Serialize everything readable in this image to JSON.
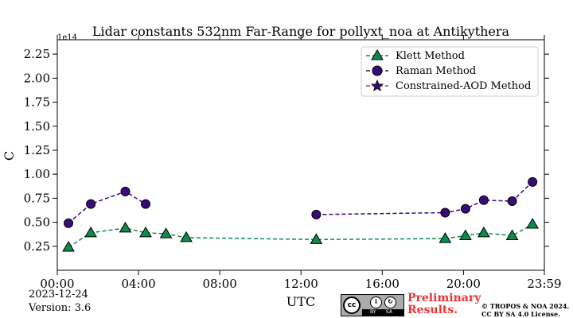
{
  "chart_data": {
    "type": "line",
    "title": "Lidar constants 532nm Far-Range for pollyxt_noa at Antikythera",
    "xlabel": "UTC",
    "ylabel": "C",
    "y_offset_label": "1e14",
    "xlim_hours": [
      0,
      23.983
    ],
    "ylim": [
      0,
      2.4
    ],
    "x_tick_labels": [
      "00:00",
      "04:00",
      "08:00",
      "12:00",
      "16:00",
      "20:00",
      "23:59"
    ],
    "y_tick_labels": [
      "0.25",
      "0.50",
      "0.75",
      "1.00",
      "1.25",
      "1.50",
      "1.75",
      "2.00",
      "2.25"
    ],
    "legend_position": "top-right",
    "series": [
      {
        "name": "Klett Method",
        "color": "#0e8a4b",
        "marker": "triangle",
        "x_hours": [
          0.55,
          1.65,
          3.35,
          4.35,
          5.35,
          6.35,
          12.75,
          19.1,
          20.1,
          21.0,
          22.4,
          23.4
        ],
        "values": [
          0.24,
          0.39,
          0.44,
          0.39,
          0.38,
          0.34,
          0.32,
          0.33,
          0.36,
          0.39,
          0.36,
          0.48
        ]
      },
      {
        "name": "Raman Method",
        "color": "#3b0a7a",
        "marker": "circle",
        "x_hours": [
          0.55,
          1.65,
          3.35,
          4.35,
          12.75,
          19.1,
          20.1,
          21.0,
          22.4,
          23.4
        ],
        "values": [
          0.49,
          0.69,
          0.82,
          0.69,
          0.58,
          0.6,
          0.64,
          0.73,
          0.72,
          0.92
        ]
      },
      {
        "name": "Constrained-AOD Method",
        "color": "#b84a1b",
        "marker": "star",
        "x_hours": [],
        "values": []
      }
    ]
  },
  "footer": {
    "date": "2023-12-24",
    "version": "Version: 3.6",
    "preliminary_line1": "Preliminary",
    "preliminary_line2": "Results.",
    "copyright_line1": "© TROPOS & NOA 2024.",
    "copyright_line2": "CC BY SA 4.0 License.",
    "cc_badge": {
      "cc": "cc",
      "by": "BY",
      "sa": "SA"
    }
  }
}
